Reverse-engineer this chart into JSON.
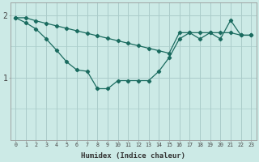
{
  "xlabel": "Humidex (Indice chaleur)",
  "background_color": "#cceae6",
  "line_color": "#1a6b5f",
  "grid_color": "#aaccca",
  "xlim": [
    -0.5,
    23.5
  ],
  "ylim": [
    0.0,
    2.2
  ],
  "yticks": [
    1,
    2
  ],
  "xtick_labels": [
    "0",
    "1",
    "2",
    "3",
    "4",
    "5",
    "6",
    "7",
    "8",
    "9",
    "10",
    "11",
    "12",
    "13",
    "14",
    "15",
    "16",
    "17",
    "18",
    "19",
    "20",
    "21",
    "22",
    "23"
  ],
  "series1_x": [
    0,
    1,
    2,
    3,
    4,
    5,
    6,
    7,
    8,
    9,
    10,
    11,
    12,
    13,
    14,
    15,
    16,
    17,
    18,
    19,
    20,
    21,
    22,
    23
  ],
  "series1_y": [
    1.96,
    1.96,
    1.91,
    1.87,
    1.83,
    1.79,
    1.75,
    1.71,
    1.67,
    1.63,
    1.59,
    1.55,
    1.51,
    1.47,
    1.43,
    1.39,
    1.72,
    1.72,
    1.72,
    1.72,
    1.72,
    1.72,
    1.68,
    1.68
  ],
  "series2_x": [
    0,
    1,
    2,
    3,
    4,
    5,
    6,
    7,
    8,
    9,
    10,
    11,
    12,
    13,
    14,
    15,
    16,
    17,
    18,
    19,
    20,
    21,
    22,
    23
  ],
  "series2_y": [
    1.96,
    1.88,
    1.78,
    1.62,
    1.44,
    1.25,
    1.12,
    1.1,
    0.82,
    0.82,
    0.95,
    0.95,
    0.95,
    0.95,
    1.1,
    1.32,
    1.62,
    1.72,
    1.62,
    1.72,
    1.62,
    1.92,
    1.68,
    1.68
  ]
}
